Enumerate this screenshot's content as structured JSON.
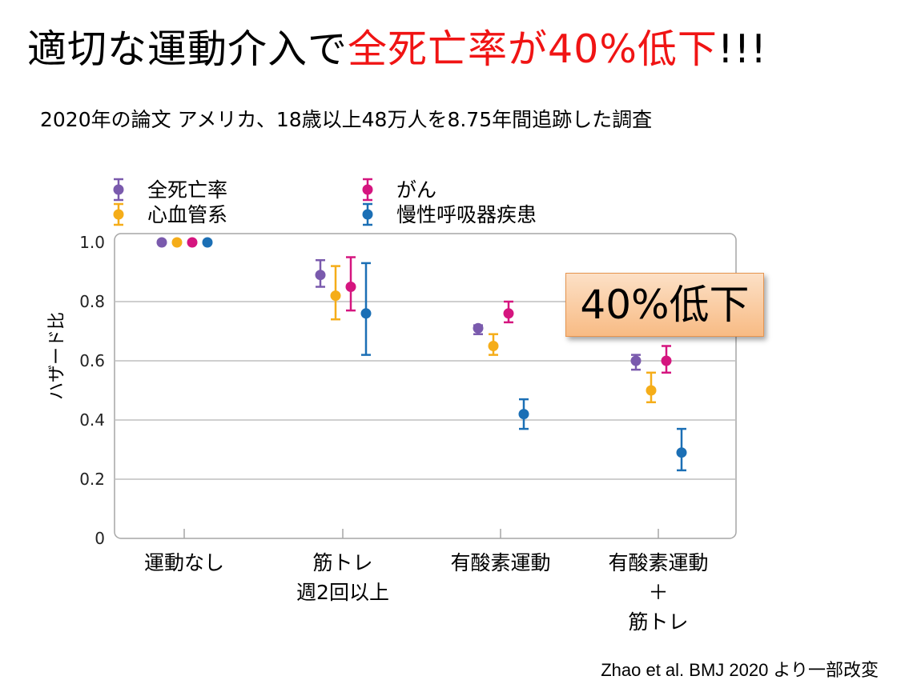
{
  "title": {
    "prefix": "適切な運動介入で",
    "highlight": "全死亡率が40%低下",
    "suffix": "!!!"
  },
  "subtitle": "2020年の論文 アメリカ、18歳以上48万人を8.75年間追跡した調査",
  "callout": "40%低下",
  "citation": "Zhao et al. BMJ 2020 より一部改変",
  "colors": {
    "accent": "#f01414",
    "grid": "#bfbfbf"
  },
  "chart_data": {
    "type": "scatter",
    "title": "",
    "ylabel": "ハザード比",
    "xlabel": "",
    "ylim": [
      0,
      1.0
    ],
    "yticks": [
      0,
      0.2,
      0.4,
      0.6,
      0.8,
      1.0
    ],
    "ytick_labels": [
      "0",
      "0.2",
      "0.4",
      "0.6",
      "0.8",
      "1.0"
    ],
    "grid": true,
    "legend_position": "top-left",
    "categories": [
      [
        "運動なし"
      ],
      [
        "筋トレ",
        "週2回以上"
      ],
      [
        "有酸素運動"
      ],
      [
        "有酸素運動",
        "＋",
        "筋トレ"
      ]
    ],
    "series": [
      {
        "name": "全死亡率",
        "color": "#7a5aad",
        "values": [
          1.0,
          0.89,
          0.71,
          0.6
        ],
        "lower": [
          1.0,
          0.85,
          0.69,
          0.57
        ],
        "upper": [
          1.0,
          0.94,
          0.72,
          0.62
        ]
      },
      {
        "name": "心血管系",
        "color": "#f5ad19",
        "values": [
          1.0,
          0.82,
          0.65,
          0.5
        ],
        "lower": [
          1.0,
          0.74,
          0.62,
          0.46
        ],
        "upper": [
          1.0,
          0.92,
          0.69,
          0.56
        ]
      },
      {
        "name": "がん",
        "color": "#d5157f",
        "values": [
          1.0,
          0.85,
          0.76,
          0.6
        ],
        "lower": [
          1.0,
          0.77,
          0.73,
          0.56
        ],
        "upper": [
          1.0,
          0.95,
          0.8,
          0.65
        ]
      },
      {
        "name": "慢性呼吸器疾患",
        "color": "#1b6fb5",
        "values": [
          1.0,
          0.76,
          0.42,
          0.29
        ],
        "lower": [
          1.0,
          0.62,
          0.37,
          0.23
        ],
        "upper": [
          1.0,
          0.93,
          0.47,
          0.37
        ]
      }
    ]
  }
}
